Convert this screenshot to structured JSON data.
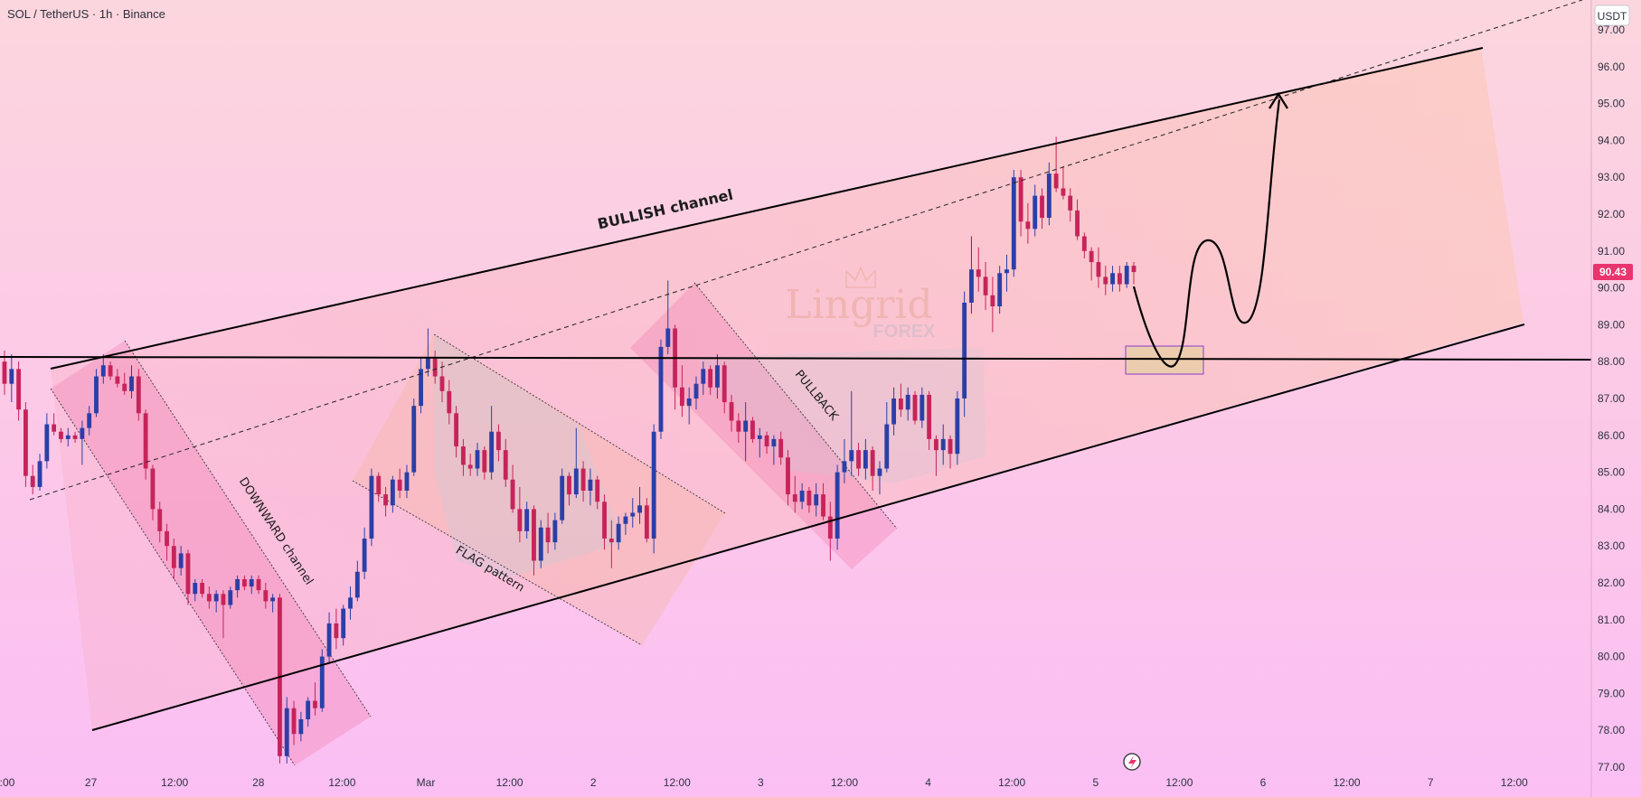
{
  "header": {
    "symbol": "SOL / TetherUS · 1h · Binance"
  },
  "price_axis": {
    "currency_label": "USDT",
    "current_price_label": "90.43",
    "current_price_color": "#e8356e"
  },
  "watermark": {
    "brand_top": "Lingrid",
    "brand_bottom": "FOREX"
  },
  "annotations": {
    "bullish_channel": "BULLISH channel",
    "downward_channel": "DOWNWARD channel",
    "flag_pattern": "FLAG pattern",
    "pullback": "PULLBACK"
  },
  "colors": {
    "up_candle": "#2b3fa6",
    "down_candle": "#c6245a",
    "trend_line": "#000000"
  },
  "chart_data": {
    "type": "candlestick",
    "ylim": [
      77,
      97
    ],
    "y_ticks": [
      "77.00",
      "78.00",
      "79.00",
      "80.00",
      "81.00",
      "82.00",
      "83.00",
      "84.00",
      "85.00",
      "86.00",
      "87.00",
      "88.00",
      "89.00",
      "90.00",
      "91.00",
      "92.00",
      "93.00",
      "94.00",
      "95.00",
      "96.00",
      "97.00"
    ],
    "x_ticks": [
      ":00",
      "27",
      "12:00",
      "28",
      "12:00",
      "Mar",
      "12:00",
      "2",
      "12:00",
      "3",
      "12:00",
      "4",
      "12:00",
      "5",
      "12:00",
      "6",
      "12:00",
      "7",
      "12:00"
    ],
    "horizontal_level": 88.2,
    "last_price": 90.43,
    "candles": [
      [
        88.0,
        88.3,
        87.1,
        87.4
      ],
      [
        87.4,
        88.2,
        86.9,
        87.8
      ],
      [
        87.8,
        88.0,
        86.4,
        86.7
      ],
      [
        86.7,
        86.9,
        84.6,
        84.9
      ],
      [
        84.9,
        85.2,
        84.4,
        84.6
      ],
      [
        84.6,
        85.5,
        84.5,
        85.3
      ],
      [
        85.3,
        86.6,
        85.1,
        86.3
      ],
      [
        86.3,
        86.6,
        86.0,
        86.1
      ],
      [
        86.1,
        86.2,
        85.8,
        85.9
      ],
      [
        85.9,
        86.2,
        85.7,
        86.0
      ],
      [
        86.0,
        86.1,
        85.8,
        85.9
      ],
      [
        85.9,
        86.4,
        85.2,
        86.2
      ],
      [
        86.2,
        86.8,
        86.0,
        86.6
      ],
      [
        86.6,
        87.8,
        86.5,
        87.6
      ],
      [
        87.6,
        88.2,
        87.4,
        87.9
      ],
      [
        87.9,
        88.0,
        87.5,
        87.6
      ],
      [
        87.6,
        87.8,
        87.3,
        87.4
      ],
      [
        87.4,
        87.7,
        87.1,
        87.2
      ],
      [
        87.2,
        87.9,
        87.0,
        87.6
      ],
      [
        87.6,
        87.8,
        86.4,
        86.6
      ],
      [
        86.6,
        86.7,
        84.8,
        85.1
      ],
      [
        85.1,
        85.2,
        83.7,
        84.0
      ],
      [
        84.0,
        84.2,
        83.1,
        83.4
      ],
      [
        83.4,
        83.6,
        82.6,
        83.0
      ],
      [
        83.0,
        83.2,
        82.1,
        82.4
      ],
      [
        82.4,
        83.0,
        82.2,
        82.8
      ],
      [
        82.8,
        82.9,
        81.4,
        81.7
      ],
      [
        81.7,
        82.1,
        81.5,
        82.0
      ],
      [
        82.0,
        82.1,
        81.6,
        81.7
      ],
      [
        81.7,
        81.9,
        81.3,
        81.5
      ],
      [
        81.5,
        81.8,
        81.2,
        81.7
      ],
      [
        81.7,
        81.8,
        80.5,
        81.4
      ],
      [
        81.4,
        81.9,
        81.3,
        81.8
      ],
      [
        81.8,
        82.2,
        81.6,
        82.1
      ],
      [
        82.1,
        82.2,
        81.8,
        81.9
      ],
      [
        81.9,
        82.2,
        81.7,
        82.1
      ],
      [
        82.1,
        82.2,
        81.7,
        81.8
      ],
      [
        81.8,
        82.0,
        81.3,
        81.5
      ],
      [
        81.5,
        81.7,
        81.2,
        81.6
      ],
      [
        81.6,
        81.7,
        77.1,
        77.3
      ],
      [
        77.3,
        78.9,
        77.1,
        78.6
      ],
      [
        78.6,
        78.8,
        77.6,
        77.9
      ],
      [
        77.9,
        78.5,
        77.7,
        78.3
      ],
      [
        78.3,
        78.9,
        78.1,
        78.8
      ],
      [
        78.8,
        79.3,
        78.4,
        78.6
      ],
      [
        78.6,
        80.2,
        78.5,
        80.0
      ],
      [
        80.0,
        81.2,
        79.8,
        80.9
      ],
      [
        80.9,
        81.3,
        80.2,
        80.5
      ],
      [
        80.5,
        81.4,
        80.3,
        81.3
      ],
      [
        81.3,
        81.9,
        81.0,
        81.6
      ],
      [
        81.6,
        82.6,
        81.5,
        82.3
      ],
      [
        82.3,
        83.5,
        82.1,
        83.2
      ],
      [
        83.2,
        85.1,
        83.0,
        84.9
      ],
      [
        84.9,
        85.0,
        84.2,
        84.4
      ],
      [
        84.4,
        84.6,
        83.8,
        84.1
      ],
      [
        84.1,
        84.9,
        83.9,
        84.8
      ],
      [
        84.8,
        85.1,
        84.3,
        84.5
      ],
      [
        84.5,
        85.2,
        84.3,
        85.0
      ],
      [
        85.0,
        87.0,
        84.9,
        86.8
      ],
      [
        86.8,
        88.1,
        86.6,
        87.8
      ],
      [
        87.8,
        88.9,
        87.6,
        88.1
      ],
      [
        88.1,
        88.3,
        87.4,
        87.6
      ],
      [
        87.6,
        88.0,
        86.9,
        87.2
      ],
      [
        87.2,
        87.5,
        86.3,
        86.6
      ],
      [
        86.6,
        86.8,
        85.4,
        85.7
      ],
      [
        85.7,
        85.9,
        84.9,
        85.2
      ],
      [
        85.2,
        85.5,
        84.9,
        85.1
      ],
      [
        85.1,
        85.8,
        84.9,
        85.6
      ],
      [
        85.6,
        85.7,
        84.8,
        85.0
      ],
      [
        85.0,
        86.8,
        84.8,
        86.1
      ],
      [
        86.1,
        86.3,
        85.3,
        85.6
      ],
      [
        85.6,
        85.9,
        84.6,
        84.8
      ],
      [
        84.8,
        85.2,
        83.9,
        84.0
      ],
      [
        84.0,
        84.6,
        83.1,
        83.4
      ],
      [
        83.4,
        84.2,
        83.2,
        84.0
      ],
      [
        84.0,
        84.1,
        82.2,
        82.6
      ],
      [
        82.6,
        83.7,
        82.4,
        83.5
      ],
      [
        83.5,
        83.9,
        82.8,
        83.1
      ],
      [
        83.1,
        83.9,
        82.9,
        83.7
      ],
      [
        83.7,
        85.1,
        83.6,
        84.9
      ],
      [
        84.9,
        85.0,
        84.1,
        84.4
      ],
      [
        84.4,
        86.2,
        84.3,
        85.1
      ],
      [
        85.1,
        85.3,
        84.2,
        84.5
      ],
      [
        84.5,
        85.1,
        84.1,
        84.8
      ],
      [
        84.8,
        84.9,
        84.0,
        84.2
      ],
      [
        84.2,
        84.4,
        82.9,
        83.2
      ],
      [
        83.2,
        83.7,
        82.4,
        83.1
      ],
      [
        83.1,
        83.8,
        82.9,
        83.6
      ],
      [
        83.6,
        83.9,
        83.3,
        83.8
      ],
      [
        83.8,
        84.3,
        83.5,
        83.9
      ],
      [
        83.9,
        84.6,
        83.6,
        84.1
      ],
      [
        84.1,
        84.3,
        83.1,
        83.2
      ],
      [
        83.2,
        86.3,
        82.8,
        86.1
      ],
      [
        86.1,
        88.6,
        85.9,
        88.4
      ],
      [
        88.4,
        90.2,
        88.2,
        88.9
      ],
      [
        88.9,
        89.0,
        86.7,
        87.3
      ],
      [
        87.3,
        87.9,
        86.5,
        86.8
      ],
      [
        86.8,
        87.3,
        86.3,
        87.0
      ],
      [
        87.0,
        87.6,
        86.7,
        87.4
      ],
      [
        87.4,
        88.0,
        87.1,
        87.8
      ],
      [
        87.8,
        87.9,
        87.1,
        87.3
      ],
      [
        87.3,
        88.2,
        87.0,
        87.9
      ],
      [
        87.9,
        88.0,
        86.6,
        86.9
      ],
      [
        86.9,
        87.1,
        86.1,
        86.4
      ],
      [
        86.4,
        86.6,
        85.8,
        86.1
      ],
      [
        86.1,
        86.9,
        85.3,
        86.4
      ],
      [
        86.4,
        86.5,
        85.8,
        85.9
      ],
      [
        85.9,
        86.2,
        85.4,
        86.0
      ],
      [
        86.0,
        86.1,
        85.5,
        85.7
      ],
      [
        85.7,
        86.0,
        85.2,
        85.9
      ],
      [
        85.9,
        86.1,
        85.2,
        85.4
      ],
      [
        85.4,
        85.6,
        84.1,
        84.4
      ],
      [
        84.4,
        84.9,
        83.9,
        84.2
      ],
      [
        84.2,
        84.7,
        84.0,
        84.5
      ],
      [
        84.5,
        84.6,
        83.9,
        84.1
      ],
      [
        84.1,
        84.7,
        83.8,
        84.4
      ],
      [
        84.4,
        84.7,
        83.7,
        83.8
      ],
      [
        83.8,
        84.2,
        82.6,
        83.2
      ],
      [
        83.2,
        85.2,
        82.9,
        85.0
      ],
      [
        85.0,
        85.9,
        84.7,
        85.3
      ],
      [
        85.3,
        87.2,
        84.9,
        85.6
      ],
      [
        85.6,
        85.8,
        84.9,
        85.1
      ],
      [
        85.1,
        85.9,
        84.8,
        85.6
      ],
      [
        85.6,
        85.7,
        84.5,
        84.9
      ],
      [
        84.9,
        85.3,
        84.4,
        85.1
      ],
      [
        85.1,
        86.9,
        85.0,
        86.3
      ],
      [
        86.3,
        87.3,
        86.0,
        87.0
      ],
      [
        87.0,
        87.4,
        86.5,
        86.7
      ],
      [
        86.7,
        87.3,
        86.4,
        87.1
      ],
      [
        87.1,
        87.2,
        86.3,
        86.4
      ],
      [
        86.4,
        87.3,
        86.2,
        87.1
      ],
      [
        87.1,
        87.2,
        85.6,
        85.9
      ],
      [
        85.9,
        86.0,
        84.9,
        85.6
      ],
      [
        85.6,
        86.3,
        85.2,
        85.9
      ],
      [
        85.9,
        86.0,
        85.1,
        85.5
      ],
      [
        85.5,
        87.2,
        85.2,
        87.0
      ],
      [
        87.0,
        89.9,
        86.5,
        89.6
      ],
      [
        89.6,
        91.4,
        89.3,
        90.5
      ],
      [
        90.5,
        91.1,
        89.9,
        90.3
      ],
      [
        90.3,
        90.7,
        89.4,
        89.8
      ],
      [
        89.8,
        90.3,
        88.8,
        89.5
      ],
      [
        89.5,
        90.6,
        89.3,
        90.4
      ],
      [
        90.4,
        90.9,
        89.9,
        90.5
      ],
      [
        90.5,
        93.2,
        90.3,
        93.0
      ],
      [
        93.0,
        93.2,
        91.4,
        91.8
      ],
      [
        91.8,
        92.3,
        91.2,
        91.6
      ],
      [
        91.6,
        92.8,
        91.4,
        92.5
      ],
      [
        92.5,
        92.7,
        91.6,
        91.9
      ],
      [
        91.9,
        93.4,
        91.7,
        93.1
      ],
      [
        93.1,
        94.1,
        92.6,
        92.7
      ],
      [
        92.7,
        93.3,
        92.4,
        92.5
      ],
      [
        92.5,
        92.7,
        91.8,
        92.1
      ],
      [
        92.1,
        92.4,
        91.3,
        91.4
      ],
      [
        91.4,
        91.5,
        90.8,
        91.0
      ],
      [
        91.0,
        91.1,
        90.2,
        90.7
      ],
      [
        90.7,
        91.1,
        90.0,
        90.3
      ],
      [
        90.3,
        90.6,
        89.8,
        90.1
      ],
      [
        90.1,
        90.6,
        89.9,
        90.4
      ],
      [
        90.4,
        90.6,
        89.9,
        90.1
      ],
      [
        90.1,
        90.7,
        90.0,
        90.6
      ],
      [
        90.6,
        90.7,
        90.1,
        90.43
      ]
    ]
  }
}
